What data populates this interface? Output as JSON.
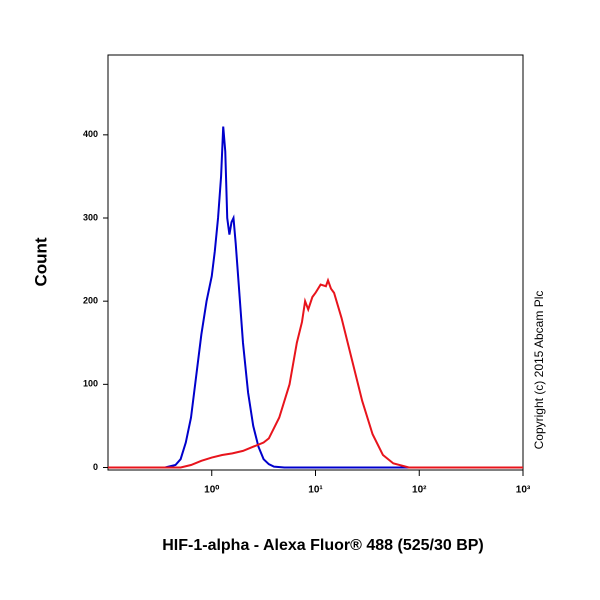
{
  "chart_data": {
    "type": "line",
    "y_label": "Count",
    "x_label": "HIF-1-alpha - Alexa Fluor® 488 (525/30 BP)",
    "annotation": "Copyright (c) 2015 Abcam Plc",
    "log_x": true,
    "xlim": [
      0.1,
      1000
    ],
    "ylim": [
      -3,
      496
    ],
    "xticks": [
      {
        "value": 1,
        "label": "10⁰"
      },
      {
        "value": 10,
        "label": "10¹"
      },
      {
        "value": 100,
        "label": "10²"
      },
      {
        "value": 1000,
        "label": "10³"
      }
    ],
    "yticks": [
      0,
      100,
      200,
      300,
      400
    ],
    "series": [
      {
        "color": "#0000cc",
        "x": [
          0.1,
          0.355,
          0.447,
          0.501,
          0.562,
          0.631,
          0.708,
          0.794,
          0.891,
          1,
          1.07,
          1.15,
          1.23,
          1.29,
          1.35,
          1.41,
          1.48,
          1.55,
          1.62,
          1.7,
          1.82,
          2.0,
          2.24,
          2.51,
          2.82,
          3.16,
          3.55,
          3.98,
          5.01,
          1000
        ],
        "values": [
          0,
          0,
          3,
          10,
          30,
          60,
          110,
          160,
          200,
          230,
          260,
          300,
          350,
          410,
          380,
          300,
          280,
          295,
          300,
          270,
          220,
          150,
          90,
          50,
          25,
          10,
          4,
          1,
          0,
          0
        ]
      },
      {
        "color": "#e8141c",
        "x": [
          0.1,
          0.501,
          0.631,
          0.794,
          1,
          1.26,
          1.58,
          2.0,
          2.51,
          3.16,
          3.55,
          4.47,
          5.62,
          6.61,
          7.41,
          7.94,
          8.51,
          9.33,
          10,
          11.2,
          12.6,
          13.2,
          14.1,
          15.1,
          17.8,
          22.4,
          28.2,
          35.5,
          44.7,
          56.2,
          79.4,
          1000
        ],
        "values": [
          0,
          0,
          3,
          8,
          12,
          15,
          17,
          20,
          25,
          30,
          35,
          60,
          100,
          150,
          175,
          200,
          190,
          205,
          210,
          220,
          218,
          225,
          215,
          210,
          180,
          130,
          80,
          40,
          15,
          5,
          0,
          0
        ]
      }
    ]
  }
}
